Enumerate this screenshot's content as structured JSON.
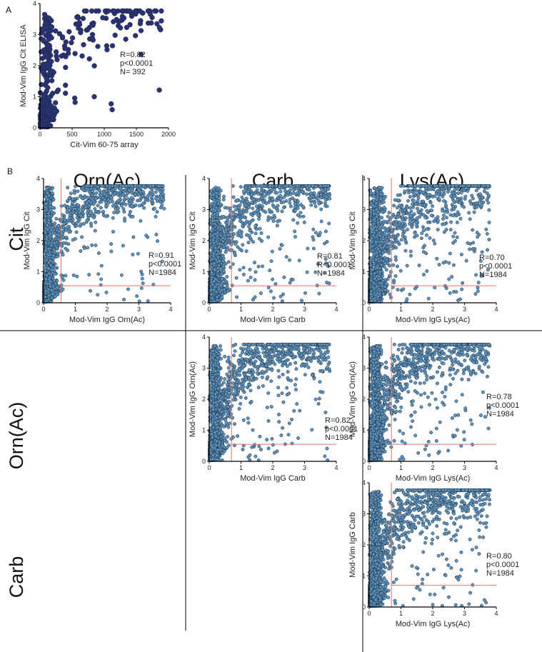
{
  "panel_labels": {
    "a": "A",
    "b": "B"
  },
  "column_titles": [
    "Orn(Ac)",
    "Carb",
    "Lys(Ac)"
  ],
  "row_titles": [
    "Cit",
    "Orn(Ac)",
    "Carb"
  ],
  "colors": {
    "panel_a_points": "#2b3175",
    "panel_b_points": "#5e93bd",
    "point_stroke": "#1a2a3a",
    "cutoff_line": "#e8736f",
    "axis": "#000000"
  },
  "chart_data": [
    {
      "id": "A",
      "type": "scatter",
      "xlabel": "Cit-Vim 60-75 array",
      "ylabel": "Mod-Vim IgG Cit ELISA",
      "xlim": [
        0,
        2000
      ],
      "ylim": [
        0,
        4
      ],
      "xticks": [
        "0",
        "500",
        "1000",
        "1500",
        "2000"
      ],
      "yticks": [
        "0",
        "1",
        "2",
        "3",
        "4"
      ],
      "stats": [
        "R=0.82",
        "p<0.0001",
        "N= 392"
      ],
      "n": 392,
      "seed": 7,
      "cutoff": null,
      "grid": false
    },
    {
      "id": "B-cit-orn",
      "type": "scatter",
      "xlabel": "Mod-Vim IgG Orn(Ac)",
      "ylabel": "Mod-Vim IgG Cit",
      "xlim": [
        0,
        4
      ],
      "ylim": [
        0,
        4
      ],
      "xticks": [
        "0",
        "1",
        "2",
        "3",
        "4"
      ],
      "yticks": [
        "0",
        "1",
        "2",
        "3",
        "4"
      ],
      "stats": [
        "R=0.91",
        "p<0.0001",
        "N=1984"
      ],
      "n": 1984,
      "seed": 11,
      "cutoff": {
        "x": 0.55,
        "y": 0.55
      },
      "grid": false
    },
    {
      "id": "B-cit-carb",
      "type": "scatter",
      "xlabel": "Mod-Vim IgG Carb",
      "ylabel": "Mod-Vim IgG Cit",
      "xlim": [
        0,
        4
      ],
      "ylim": [
        0,
        4
      ],
      "xticks": [
        "0",
        "1",
        "2",
        "3",
        "4"
      ],
      "yticks": [
        "0",
        "1",
        "2",
        "3",
        "4"
      ],
      "stats": [
        "R=0.81",
        "R<0.0001",
        "N=1984"
      ],
      "n": 1984,
      "seed": 23,
      "cutoff": {
        "x": 0.7,
        "y": 0.55
      },
      "grid": false
    },
    {
      "id": "B-cit-lys",
      "type": "scatter",
      "xlabel": "Mod-Vim IgG Lys(Ac)",
      "ylabel": "Mod-Vim IgG Cit",
      "xlim": [
        0,
        4
      ],
      "ylim": [
        0,
        4
      ],
      "xticks": [
        "0",
        "1",
        "2",
        "3",
        "4"
      ],
      "yticks": [
        "0",
        "1",
        "2",
        "3",
        "4"
      ],
      "stats": [
        "R=0.70",
        "p<0.0001",
        "N=1984"
      ],
      "n": 1984,
      "seed": 31,
      "cutoff": {
        "x": 0.7,
        "y": 0.55
      },
      "grid": false
    },
    {
      "id": "B-orn-carb",
      "type": "scatter",
      "xlabel": "Mod-Vim IgG Carb",
      "ylabel": "Mod-Vim IgG Orn(Ac)",
      "xlim": [
        0,
        4
      ],
      "ylim": [
        0,
        4
      ],
      "xticks": [
        "0",
        "1",
        "2",
        "3",
        "4"
      ],
      "yticks": [
        "0",
        "1",
        "2",
        "3",
        "4"
      ],
      "stats": [
        "R=0.82",
        "p<0.0001",
        "N=1984"
      ],
      "n": 1984,
      "seed": 43,
      "cutoff": {
        "x": 0.7,
        "y": 0.55
      },
      "grid": false
    },
    {
      "id": "B-orn-lys",
      "type": "scatter",
      "xlabel": "Mod-Vim IgG Lys(Ac)",
      "ylabel": "Mod-Vim IgG Orn(Ac)",
      "xlim": [
        0,
        4
      ],
      "ylim": [
        0,
        4
      ],
      "xticks": [
        "0",
        "1",
        "2",
        "3",
        "4"
      ],
      "yticks": [
        "0",
        "1",
        "2",
        "3",
        "4"
      ],
      "stats": [
        "R=0.78",
        "p<0.0001",
        "N=1984"
      ],
      "n": 1984,
      "seed": 59,
      "cutoff": {
        "x": 0.7,
        "y": 0.55
      },
      "grid": false
    },
    {
      "id": "B-carb-lys",
      "type": "scatter",
      "xlabel": "Mod-Vim IgG Lys(Ac)",
      "ylabel": "Mod-Vim IgG Carb",
      "xlim": [
        0,
        4
      ],
      "ylim": [
        0,
        4
      ],
      "xticks": [
        "0",
        "1",
        "2",
        "3",
        "4"
      ],
      "yticks": [
        "0",
        "1",
        "2",
        "3",
        "4"
      ],
      "stats": [
        "R=0.80",
        "p<0.0001",
        "N=1984"
      ],
      "n": 1984,
      "seed": 67,
      "cutoff": {
        "x": 0.7,
        "y": 0.7
      },
      "grid": false
    }
  ]
}
